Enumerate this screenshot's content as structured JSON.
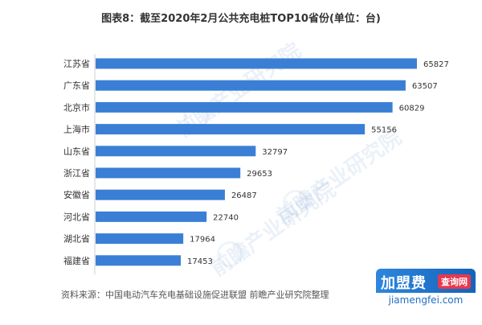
{
  "title": "图表8：截至2020年2月公共充电桩TOP10省份(单位：台)",
  "source": "资料来源：中国电动汽车充电基础设施促进联盟 前瞻产业研究院整理",
  "watermark": "前瞻产业研究院",
  "brand": {
    "main": "加盟费",
    "sub": "查询网",
    "url": "jiamengfei.com"
  },
  "colors": {
    "bar": "#3a7fd5",
    "category_text": "#333333",
    "value_text": "#333333",
    "axis": "#cfcfcf"
  },
  "chart_data": {
    "type": "bar",
    "orientation": "horizontal",
    "categories": [
      "江苏省",
      "广东省",
      "北京市",
      "上海市",
      "山东省",
      "浙江省",
      "安徽省",
      "河北省",
      "湖北省",
      "福建省"
    ],
    "values": [
      65827,
      63507,
      60829,
      55156,
      32797,
      29653,
      26487,
      22740,
      17964,
      17453
    ],
    "xlim": [
      0,
      70000
    ],
    "grid": false,
    "legend": "none"
  }
}
